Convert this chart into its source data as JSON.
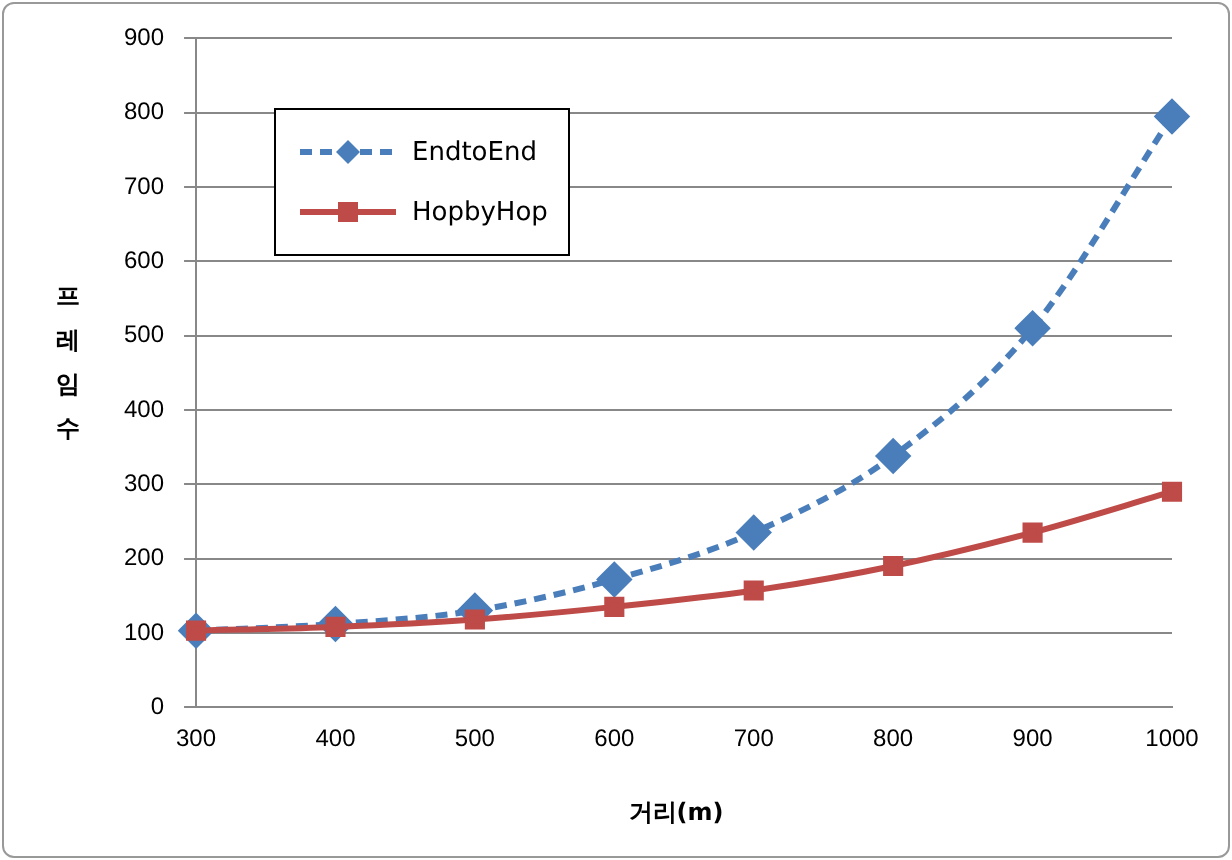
{
  "chart_data": {
    "type": "line",
    "xlabel": "거리(m)",
    "ylabel": "프레임 수",
    "categories": [
      "300",
      "400",
      "500",
      "600",
      "700",
      "800",
      "900",
      "1000"
    ],
    "series": [
      {
        "name": "EndtoEnd",
        "color": "#4a7ebb",
        "marker": "diamond",
        "line_style": "dashed",
        "values": [
          103,
          112,
          130,
          172,
          235,
          338,
          510,
          795
        ]
      },
      {
        "name": "HopbyHop",
        "color": "#be4b48",
        "marker": "square",
        "line_style": "solid",
        "values": [
          103,
          108,
          118,
          135,
          157,
          190,
          235,
          290
        ]
      }
    ],
    "ylim": [
      0,
      900
    ],
    "yticks": [
      0,
      100,
      200,
      300,
      400,
      500,
      600,
      700,
      800,
      900
    ],
    "grid": "y",
    "legend": "top left"
  }
}
